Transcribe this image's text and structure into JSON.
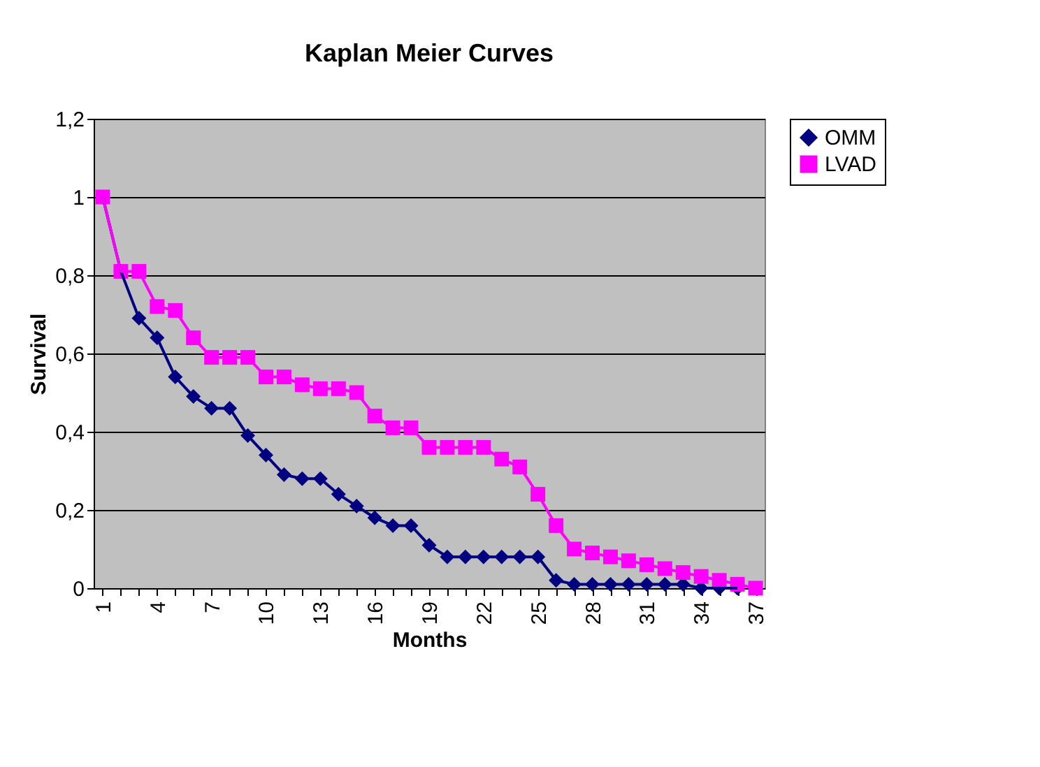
{
  "chart_data": {
    "type": "line",
    "title": "Kaplan Meier Curves",
    "xlabel": "Months",
    "ylabel": "Survival",
    "categories": [
      "1",
      null,
      null,
      "4",
      null,
      null,
      "7",
      null,
      null,
      "10",
      null,
      null,
      "13",
      null,
      null,
      "16",
      null,
      null,
      "19",
      null,
      null,
      "22",
      null,
      null,
      "25",
      null,
      null,
      "28",
      null,
      null,
      "31",
      null,
      null,
      "34",
      null,
      null,
      "37"
    ],
    "series": [
      {
        "name": "OMM",
        "color": "#000080",
        "marker": "diamond",
        "values": [
          1,
          0.81,
          0.69,
          0.64,
          0.54,
          0.49,
          0.46,
          0.46,
          0.39,
          0.34,
          0.29,
          0.28,
          0.28,
          0.24,
          0.21,
          0.18,
          0.16,
          0.16,
          0.11,
          0.08,
          0.08,
          0.08,
          0.08,
          0.08,
          0.08,
          0.02,
          0.01,
          0.01,
          0.01,
          0.01,
          0.01,
          0.01,
          0.01,
          0,
          0,
          0,
          null
        ]
      },
      {
        "name": "LVAD",
        "color": "#ff00ff",
        "marker": "square",
        "values": [
          1,
          0.81,
          0.81,
          0.72,
          0.71,
          0.64,
          0.59,
          0.59,
          0.59,
          0.54,
          0.54,
          0.52,
          0.51,
          0.51,
          0.5,
          0.44,
          0.41,
          0.41,
          0.36,
          0.36,
          0.36,
          0.36,
          0.33,
          0.31,
          0.24,
          0.16,
          0.1,
          0.09,
          0.08,
          0.07,
          0.06,
          0.05,
          0.04,
          0.03,
          0.02,
          0.01,
          0
        ]
      }
    ],
    "ylim": [
      0,
      1.2
    ],
    "yticks": [
      0,
      {
        "value": 0.2,
        "label": "0,2"
      },
      {
        "value": 0.4,
        "label": "0,4"
      },
      {
        "value": 0.6,
        "label": "0,6"
      },
      {
        "value": 0.8,
        "label": "0,8"
      },
      1,
      {
        "value": 1.2,
        "label": "1,2"
      }
    ],
    "grid": "y",
    "legend": "right",
    "line_style": "solid"
  }
}
